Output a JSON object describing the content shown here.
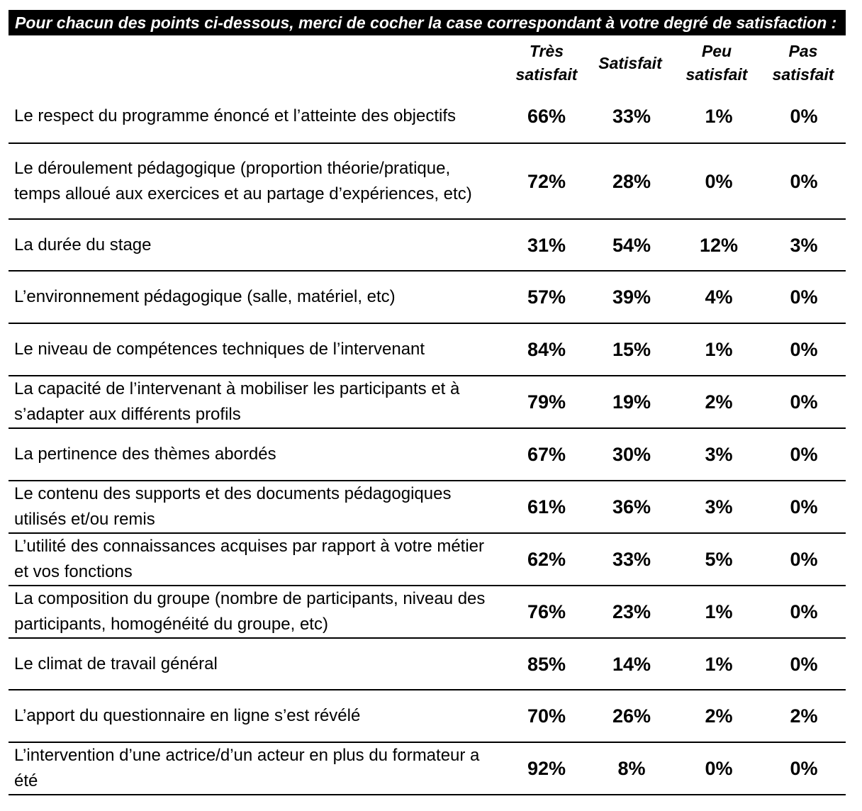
{
  "instruction": "Pour chacun des points ci-dessous, merci de cocher la case correspondant à votre degré de satisfaction :",
  "columns": [
    {
      "line1": "Très",
      "line2": "satisfait"
    },
    {
      "line1": "Satisfait",
      "line2": ""
    },
    {
      "line1": "Peu",
      "line2": "satisfait"
    },
    {
      "line1": "Pas",
      "line2": "satisfait"
    }
  ],
  "rows": [
    {
      "label": "Le respect du programme énoncé et l’atteinte des objectifs",
      "values": [
        "66%",
        "33%",
        "1%",
        "0%"
      ]
    },
    {
      "label": "Le déroulement pédagogique (proportion théorie/pratique, temps alloué aux exercices et au partage d’expériences, etc)",
      "values": [
        "72%",
        "28%",
        "0%",
        "0%"
      ]
    },
    {
      "label": "La durée du stage",
      "values": [
        "31%",
        "54%",
        "12%",
        "3%"
      ]
    },
    {
      "label": "L’environnement pédagogique (salle, matériel, etc)",
      "values": [
        "57%",
        "39%",
        "4%",
        "0%"
      ]
    },
    {
      "label": "Le niveau de compétences techniques de l’intervenant",
      "values": [
        "84%",
        "15%",
        "1%",
        "0%"
      ]
    },
    {
      "label": "La capacité de l’intervenant à mobiliser les participants et à s’adapter aux différents profils",
      "values": [
        "79%",
        "19%",
        "2%",
        "0%"
      ]
    },
    {
      "label": "La pertinence des thèmes abordés",
      "values": [
        "67%",
        "30%",
        "3%",
        "0%"
      ]
    },
    {
      "label": "Le contenu des supports et des documents pédagogiques utilisés et/ou remis",
      "values": [
        "61%",
        "36%",
        "3%",
        "0%"
      ]
    },
    {
      "label": "L’utilité des connaissances acquises par rapport à votre métier et vos fonctions",
      "values": [
        "62%",
        "33%",
        "5%",
        "0%"
      ]
    },
    {
      "label": "La composition du groupe (nombre de participants, niveau des participants, homogénéité du groupe, etc)",
      "values": [
        "76%",
        "23%",
        "1%",
        "0%"
      ]
    },
    {
      "label": "Le climat de travail général",
      "values": [
        "85%",
        "14%",
        "1%",
        "0%"
      ]
    },
    {
      "label": "L’apport du questionnaire en ligne s’est révélé",
      "values": [
        "70%",
        "26%",
        "2%",
        "2%"
      ]
    },
    {
      "label": "L’intervention d’une actrice/d’un acteur en plus du formateur a été",
      "values": [
        "92%",
        "8%",
        "0%",
        "0%"
      ]
    }
  ]
}
